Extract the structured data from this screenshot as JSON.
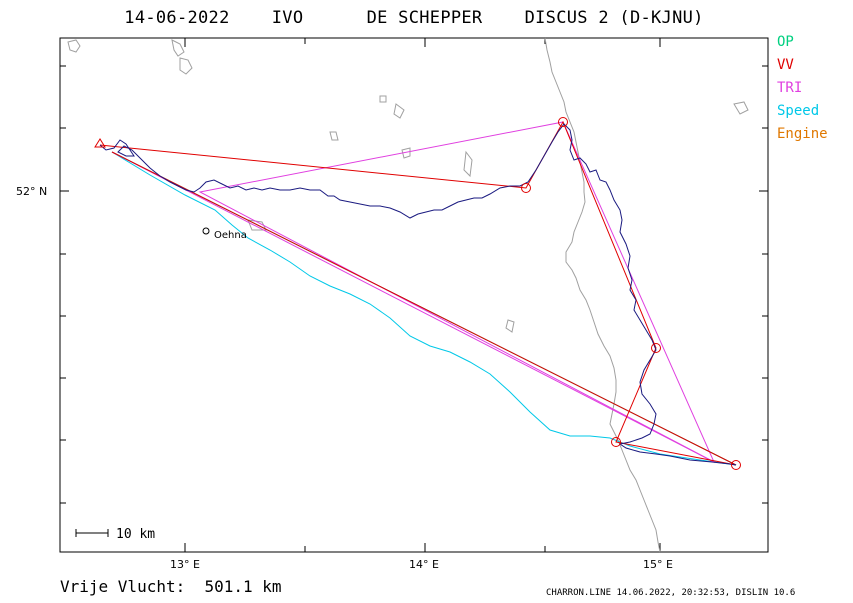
{
  "header": {
    "title": "14-06-2022    IVO      DE SCHEPPER    DISCUS 2 (D-KJNU)"
  },
  "legend": [
    {
      "label": "OP",
      "color": "#00d080"
    },
    {
      "label": "VV",
      "color": "#e00000"
    },
    {
      "label": "TRI",
      "color": "#e040e0"
    },
    {
      "label": "Speed",
      "color": "#00c8e8"
    },
    {
      "label": "Engine",
      "color": "#e07800"
    }
  ],
  "axes": {
    "x_ticks": [
      "13° E",
      "14° E",
      "15° E"
    ],
    "y_ticks": [
      "52° N"
    ]
  },
  "places": [
    {
      "name": "Oehna"
    }
  ],
  "scale_bar": {
    "label": "10 km"
  },
  "footer": {
    "distance": "Vrije Vlucht:  501.1 km",
    "credit": "CHARRON.LINE 14.06.2022, 20:32:53, DISLIN 10.6"
  },
  "colors": {
    "track": "#1a1a80",
    "border": "#a0a0a0",
    "frame": "#000000"
  }
}
